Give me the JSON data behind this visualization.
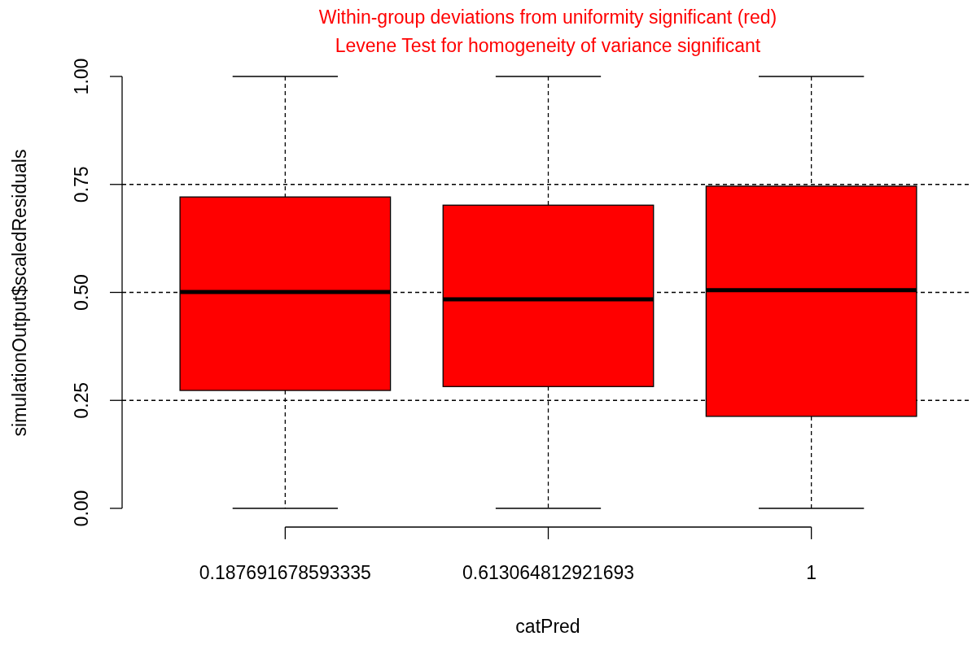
{
  "chart_data": {
    "type": "box",
    "title": "Within-group deviations from uniformity significant (red)",
    "subtitle": "Levene Test for homogeneity of variance significant",
    "xlabel": "catPred",
    "ylabel": "simulationOutput$scaledResiduals",
    "categories": [
      "0.187691678593335",
      "0.613064812921693",
      "1"
    ],
    "color": "#ff0000",
    "boxes": [
      {
        "low": 0,
        "q1": 0.273,
        "median": 0.501,
        "q3": 0.721,
        "high": 1
      },
      {
        "low": 0,
        "q1": 0.282,
        "median": 0.484,
        "q3": 0.702,
        "high": 1
      },
      {
        "low": 0,
        "q1": 0.213,
        "median": 0.505,
        "q3": 0.746,
        "high": 1
      }
    ],
    "ylim": [
      0,
      1
    ],
    "yticks": [
      {
        "value": 0,
        "label": "0.00"
      },
      {
        "value": 0.25,
        "label": "0.25"
      },
      {
        "value": 0.5,
        "label": "0.50"
      },
      {
        "value": 0.75,
        "label": "0.75"
      },
      {
        "value": 1,
        "label": "1.00"
      }
    ],
    "ref_lines": [
      {
        "axis": "y",
        "value": 0.25,
        "line_style": "dashed"
      },
      {
        "axis": "y",
        "value": 0.5,
        "line_style": "dashed"
      },
      {
        "axis": "y",
        "value": 0.75,
        "line_style": "dashed"
      }
    ],
    "grid": false
  }
}
